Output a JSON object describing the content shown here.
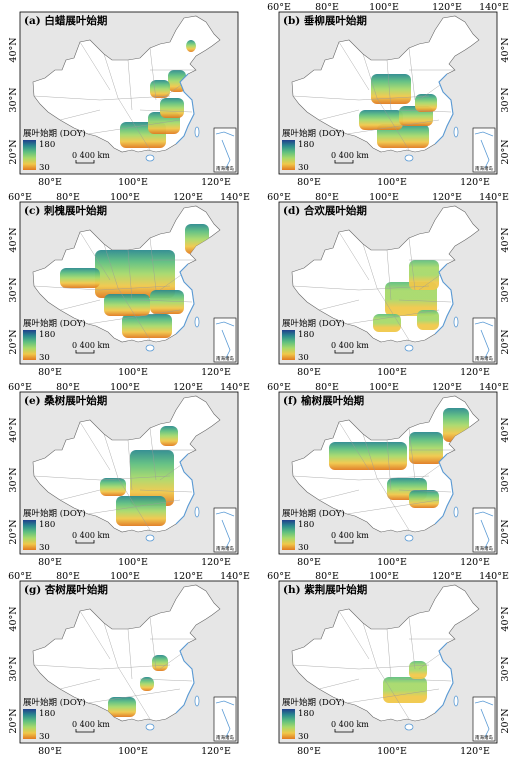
{
  "figure": {
    "legend_title": "展叶始期 (DOY)",
    "legend_max": "180",
    "legend_min": "30",
    "scale_text": "0   400 km",
    "inset_label": "南海诸岛",
    "colors": {
      "ocean": "#e6e6e6",
      "land": "#ffffff",
      "boundary": "#9a9a9a",
      "coast": "#5b9bd5",
      "ramp": [
        "#1f3f8c",
        "#2c8a8e",
        "#5fbf7f",
        "#a7d96a",
        "#f0c84a",
        "#e07a20"
      ]
    }
  },
  "panels": [
    {
      "title": "(a) 白蜡展叶始期",
      "top_ticks": [],
      "bottom_ticks": [
        "80°E",
        "100°E",
        "120°E"
      ],
      "left_ticks": [
        "40°N",
        "30°N",
        "20°N"
      ],
      "right_ticks": [],
      "coverage": "south-east",
      "early_south": true
    },
    {
      "title": "(b) 垂柳展叶始期",
      "top_ticks": [
        "60°E",
        "80°E",
        "100°E",
        "120°E",
        "140°E"
      ],
      "bottom_ticks": [
        "80°E",
        "100°E",
        "120°E"
      ],
      "left_ticks": [],
      "right_ticks": [
        "40°N",
        "30°N",
        "20°N"
      ],
      "coverage": "south-central",
      "early_south": true
    },
    {
      "title": "(c) 刺槐展叶始期",
      "top_ticks": [
        "60°E",
        "80°E",
        "100°E",
        "120°E",
        "140°E"
      ],
      "bottom_ticks": [
        "80°E",
        "100°E",
        "120°E"
      ],
      "left_ticks": [
        "40°N",
        "30°N",
        "20°N"
      ],
      "right_ticks": [],
      "coverage": "most",
      "early_south": true
    },
    {
      "title": "(d) 合欢展叶始期",
      "top_ticks": [
        "60°E",
        "80°E",
        "100°E",
        "120°E",
        "140°E"
      ],
      "bottom_ticks": [
        "80°E",
        "100°E",
        "120°E"
      ],
      "left_ticks": [],
      "right_ticks": [
        "40°N",
        "30°N",
        "20°N"
      ],
      "coverage": "east-central",
      "early_south": false
    },
    {
      "title": "(e) 桑树展叶始期",
      "top_ticks": [
        "60°E",
        "80°E",
        "100°E",
        "120°E",
        "140°E"
      ],
      "bottom_ticks": [
        "80°E",
        "100°E",
        "120°E"
      ],
      "left_ticks": [
        "40°N",
        "30°N",
        "20°N"
      ],
      "right_ticks": [],
      "coverage": "east-half",
      "early_south": true
    },
    {
      "title": "(f) 榆树展叶始期",
      "top_ticks": [
        "60°E",
        "80°E",
        "100°E",
        "120°E",
        "140°E"
      ],
      "bottom_ticks": [
        "80°E",
        "100°E",
        "120°E"
      ],
      "left_ticks": [],
      "right_ticks": [
        "40°N",
        "30°N",
        "20°N"
      ],
      "coverage": "north",
      "early_south": true
    },
    {
      "title": "(g) 杏树展叶始期",
      "top_ticks": [
        "60°E",
        "80°E",
        "100°E",
        "120°E",
        "140°E"
      ],
      "bottom_ticks": [
        "80°E",
        "100°E",
        "120°E"
      ],
      "left_ticks": [
        "40°N",
        "30°N",
        "20°N"
      ],
      "right_ticks": [],
      "coverage": "sparse-sw",
      "early_south": true
    },
    {
      "title": "(h) 紫荆展叶始期",
      "top_ticks": [
        "60°E",
        "80°E",
        "100°E",
        "120°E",
        "140°E"
      ],
      "bottom_ticks": [
        "80°E",
        "100°E",
        "120°E"
      ],
      "left_ticks": [],
      "right_ticks": [
        "40°N",
        "30°N",
        "20°N"
      ],
      "coverage": "central-small",
      "early_south": false
    }
  ]
}
